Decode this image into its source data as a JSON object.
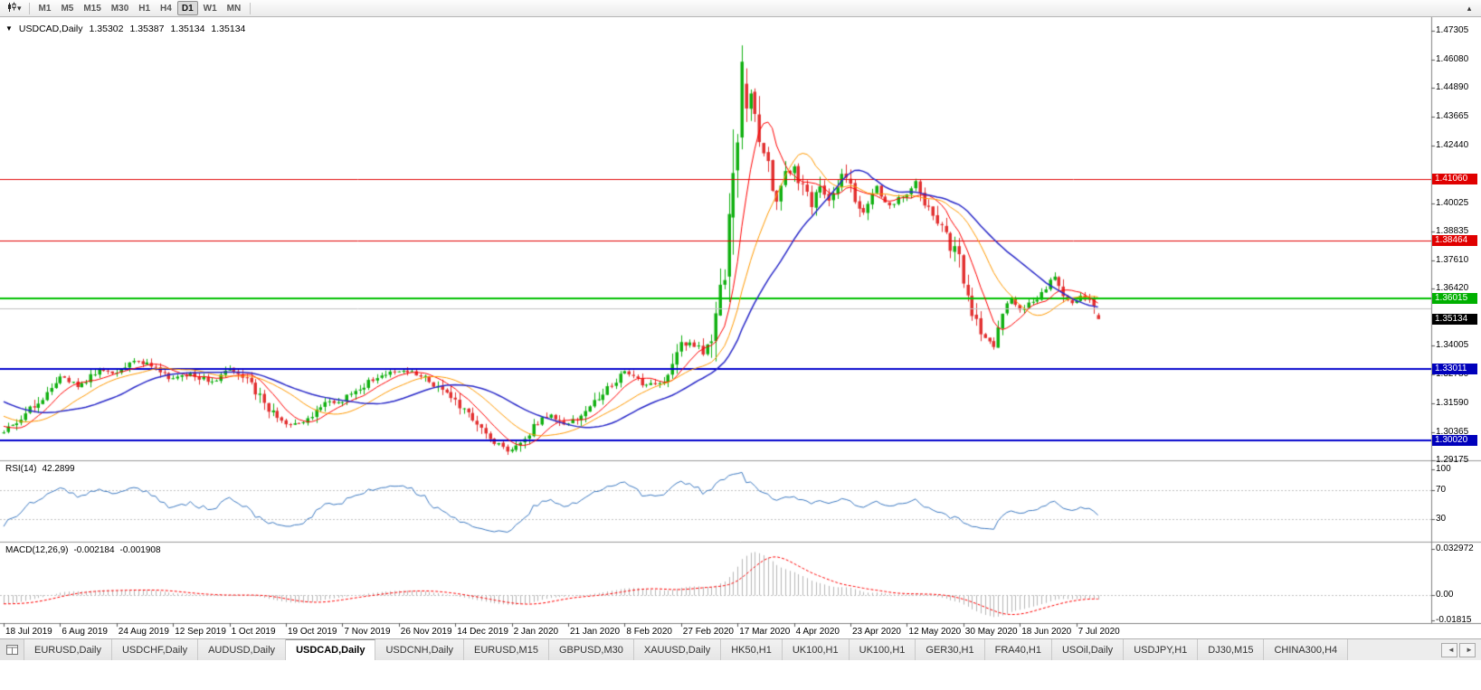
{
  "toolbar": {
    "dropdown_glyph": "▾",
    "timeframes": [
      {
        "label": "M1",
        "active": false
      },
      {
        "label": "M5",
        "active": false
      },
      {
        "label": "M15",
        "active": false
      },
      {
        "label": "M30",
        "active": false
      },
      {
        "label": "H1",
        "active": false
      },
      {
        "label": "H4",
        "active": false
      },
      {
        "label": "D1",
        "active": true
      },
      {
        "label": "W1",
        "active": false
      },
      {
        "label": "MN",
        "active": false
      }
    ],
    "collapse_button": "▴"
  },
  "chart": {
    "one_click_arrow": "▼",
    "info": {
      "symbol": "USDCAD,Daily",
      "open": "1.35302",
      "high": "1.35387",
      "low": "1.35134",
      "close": "1.35134"
    }
  },
  "chart_data": {
    "type": "candlestick",
    "symbol": "USDCAD",
    "timeframe": "Daily",
    "price_range": {
      "top": 1.4788,
      "bottom": 1.2917
    },
    "candle_count": 253,
    "colors": {
      "up": "#11b011",
      "down": "#e23030",
      "ma_fast": "#ff0000",
      "ma_mid": "#ff9900",
      "ma_slow": "#2929c8",
      "rsi_line": "#3b78c0",
      "rsi_guide": "#c0c0c0",
      "macd_hist": "#b6b6b6",
      "macd_signal": "#ff0000"
    },
    "moving_averages": [
      {
        "period": 8,
        "color_key": "ma_fast",
        "width": 1
      },
      {
        "period": 17,
        "color_key": "ma_mid",
        "width": 1
      },
      {
        "period": 30,
        "color_key": "ma_slow",
        "width": 1.5
      }
    ],
    "axis_ticks": [
      "1.47305",
      "1.46080",
      "1.44890",
      "1.43665",
      "1.42440",
      "1.40025",
      "1.38835",
      "1.37610",
      "1.36420",
      "1.34005",
      "1.32780",
      "1.31590",
      "1.30365",
      "1.29175"
    ],
    "levels": [
      {
        "price": 1.4106,
        "label": "1.41060",
        "color": "#e00000",
        "badge": "#e00000",
        "width": 1
      },
      {
        "price": 1.38464,
        "label": "1.38464",
        "color": "#e00000",
        "badge": "#e00000",
        "width": 1
      },
      {
        "price": 1.36015,
        "label": "1.36015",
        "color": "#00c000",
        "badge": "#00b000",
        "width": 2
      },
      {
        "price": 1.356,
        "label": "",
        "color": "#c0c0c0",
        "badge": "",
        "width": 1
      },
      {
        "price": 1.33011,
        "label": "1.33011",
        "color": "#0000cc",
        "badge": "#0000bb",
        "width": 2
      },
      {
        "price": 1.3002,
        "label": "1.30020",
        "color": "#0000cc",
        "badge": "#0000bb",
        "width": 2
      }
    ],
    "current_price": {
      "value": 1.35134,
      "label": "1.35134",
      "badge_color": "#000000"
    },
    "last_candle": {
      "open": 1.35302,
      "high": 1.35387,
      "low": 1.35134,
      "close": 1.35134
    },
    "extremes": {
      "high_index": 170,
      "high_candle": {
        "open": 1.428,
        "high": 1.4669,
        "low": 1.423,
        "close": 1.46
      },
      "low_index": 116,
      "low": 1.294
    },
    "close_anchors": [
      [
        0,
        1.3035
      ],
      [
        4,
        1.309
      ],
      [
        8,
        1.3165
      ],
      [
        13,
        1.327
      ],
      [
        17,
        1.323
      ],
      [
        22,
        1.33
      ],
      [
        26,
        1.329
      ],
      [
        30,
        1.3345
      ],
      [
        34,
        1.331
      ],
      [
        39,
        1.3255
      ],
      [
        43,
        1.3285
      ],
      [
        48,
        1.324
      ],
      [
        52,
        1.331
      ],
      [
        57,
        1.324
      ],
      [
        61,
        1.313
      ],
      [
        65,
        1.3065
      ],
      [
        70,
        1.309
      ],
      [
        74,
        1.3155
      ],
      [
        78,
        1.3175
      ],
      [
        84,
        1.3245
      ],
      [
        91,
        1.33
      ],
      [
        96,
        1.3275
      ],
      [
        100,
        1.323
      ],
      [
        104,
        1.3165
      ],
      [
        109,
        1.3075
      ],
      [
        113,
        1.299
      ],
      [
        116,
        1.2952
      ],
      [
        119,
        1.299
      ],
      [
        122,
        1.306
      ],
      [
        126,
        1.311
      ],
      [
        130,
        1.3065
      ],
      [
        134,
        1.312
      ],
      [
        138,
        1.32
      ],
      [
        143,
        1.329
      ],
      [
        147,
        1.3245
      ],
      [
        151,
        1.323
      ],
      [
        154,
        1.332
      ],
      [
        156,
        1.34
      ],
      [
        158,
        1.342
      ],
      [
        161,
        1.338
      ],
      [
        163,
        1.343
      ],
      [
        165,
        1.363
      ],
      [
        167,
        1.387
      ],
      [
        169,
        1.423
      ],
      [
        170,
        1.456
      ],
      [
        171,
        1.443
      ],
      [
        172,
        1.448
      ],
      [
        174,
        1.426
      ],
      [
        176,
        1.414
      ],
      [
        178,
        1.401
      ],
      [
        180,
        1.412
      ],
      [
        182,
        1.416
      ],
      [
        184,
        1.406
      ],
      [
        186,
        1.4
      ],
      [
        188,
        1.409
      ],
      [
        190,
        1.402
      ],
      [
        193,
        1.412
      ],
      [
        195,
        1.409
      ],
      [
        197,
        1.396
      ],
      [
        199,
        1.399
      ],
      [
        201,
        1.407
      ],
      [
        203,
        1.399
      ],
      [
        206,
        1.402
      ],
      [
        208,
        1.404
      ],
      [
        210,
        1.41
      ],
      [
        212,
        1.401
      ],
      [
        214,
        1.396
      ],
      [
        216,
        1.391
      ],
      [
        218,
        1.382
      ],
      [
        220,
        1.377
      ],
      [
        222,
        1.362
      ],
      [
        224,
        1.35
      ],
      [
        226,
        1.343
      ],
      [
        228,
        1.3415
      ],
      [
        230,
        1.352
      ],
      [
        232,
        1.36
      ],
      [
        234,
        1.3545
      ],
      [
        236,
        1.3575
      ],
      [
        238,
        1.3605
      ],
      [
        240,
        1.3655
      ],
      [
        242,
        1.3685
      ],
      [
        244,
        1.362
      ],
      [
        246,
        1.358
      ],
      [
        248,
        1.3605
      ],
      [
        250,
        1.3585
      ],
      [
        252,
        1.35134
      ]
    ],
    "x_labels": [
      "18 Jul 2019",
      "6 Aug 2019",
      "24 Aug 2019",
      "12 Sep 2019",
      "1 Oct 2019",
      "19 Oct 2019",
      "7 Nov 2019",
      "26 Nov 2019",
      "14 Dec 2019",
      "2 Jan 2020",
      "21 Jan 2020",
      "8 Feb 2020",
      "27 Feb 2020",
      "17 Mar 2020",
      "4 Apr 2020",
      "23 Apr 2020",
      "12 May 2020",
      "30 May 2020",
      "18 Jun 2020",
      "7 Jul 2020"
    ],
    "rsi": {
      "title": "RSI(14)",
      "value": "42.2899",
      "axis_labels": [
        "100",
        "70",
        "30"
      ],
      "guide_levels": [
        70,
        30
      ]
    },
    "macd": {
      "title": "MACD(12,26,9)",
      "value_main": "-0.002184",
      "value_signal": "-0.001908",
      "axis_labels": [
        "0.032972",
        "0.00",
        "-0.01815"
      ]
    }
  },
  "tabs": {
    "items": [
      {
        "label": "EURUSD,Daily",
        "active": false
      },
      {
        "label": "USDCHF,Daily",
        "active": false
      },
      {
        "label": "AUDUSD,Daily",
        "active": false
      },
      {
        "label": "USDCAD,Daily",
        "active": true
      },
      {
        "label": "USDCNH,Daily",
        "active": false
      },
      {
        "label": "EURUSD,M15",
        "active": false
      },
      {
        "label": "GBPUSD,M30",
        "active": false
      },
      {
        "label": "XAUUSD,Daily",
        "active": false
      },
      {
        "label": "HK50,H1",
        "active": false
      },
      {
        "label": "UK100,H1",
        "active": false
      },
      {
        "label": "UK100,H1",
        "active": false
      },
      {
        "label": "GER30,H1",
        "active": false
      },
      {
        "label": "FRA40,H1",
        "active": false
      },
      {
        "label": "USOil,Daily",
        "active": false
      },
      {
        "label": "USDJPY,H1",
        "active": false
      },
      {
        "label": "DJ30,M15",
        "active": false
      },
      {
        "label": "CHINA300,H4",
        "active": false
      }
    ],
    "scroll_left": "◄",
    "scroll_right": "►"
  }
}
